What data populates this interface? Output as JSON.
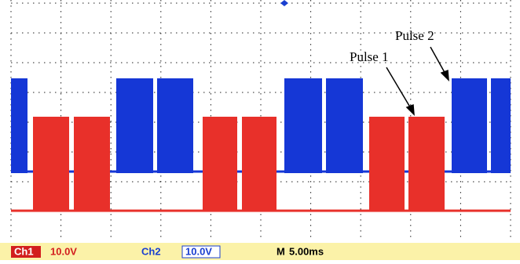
{
  "annotations": {
    "pulse_1": "Pulse 1",
    "pulse_2": "Pulse 2"
  },
  "status_bar": {
    "ch1": "Ch1",
    "ch1_scale": "10.0V",
    "ch2": "Ch2",
    "ch2_scale": "10.0V",
    "timebase_label": "M",
    "timebase": "5.00ms"
  }
}
